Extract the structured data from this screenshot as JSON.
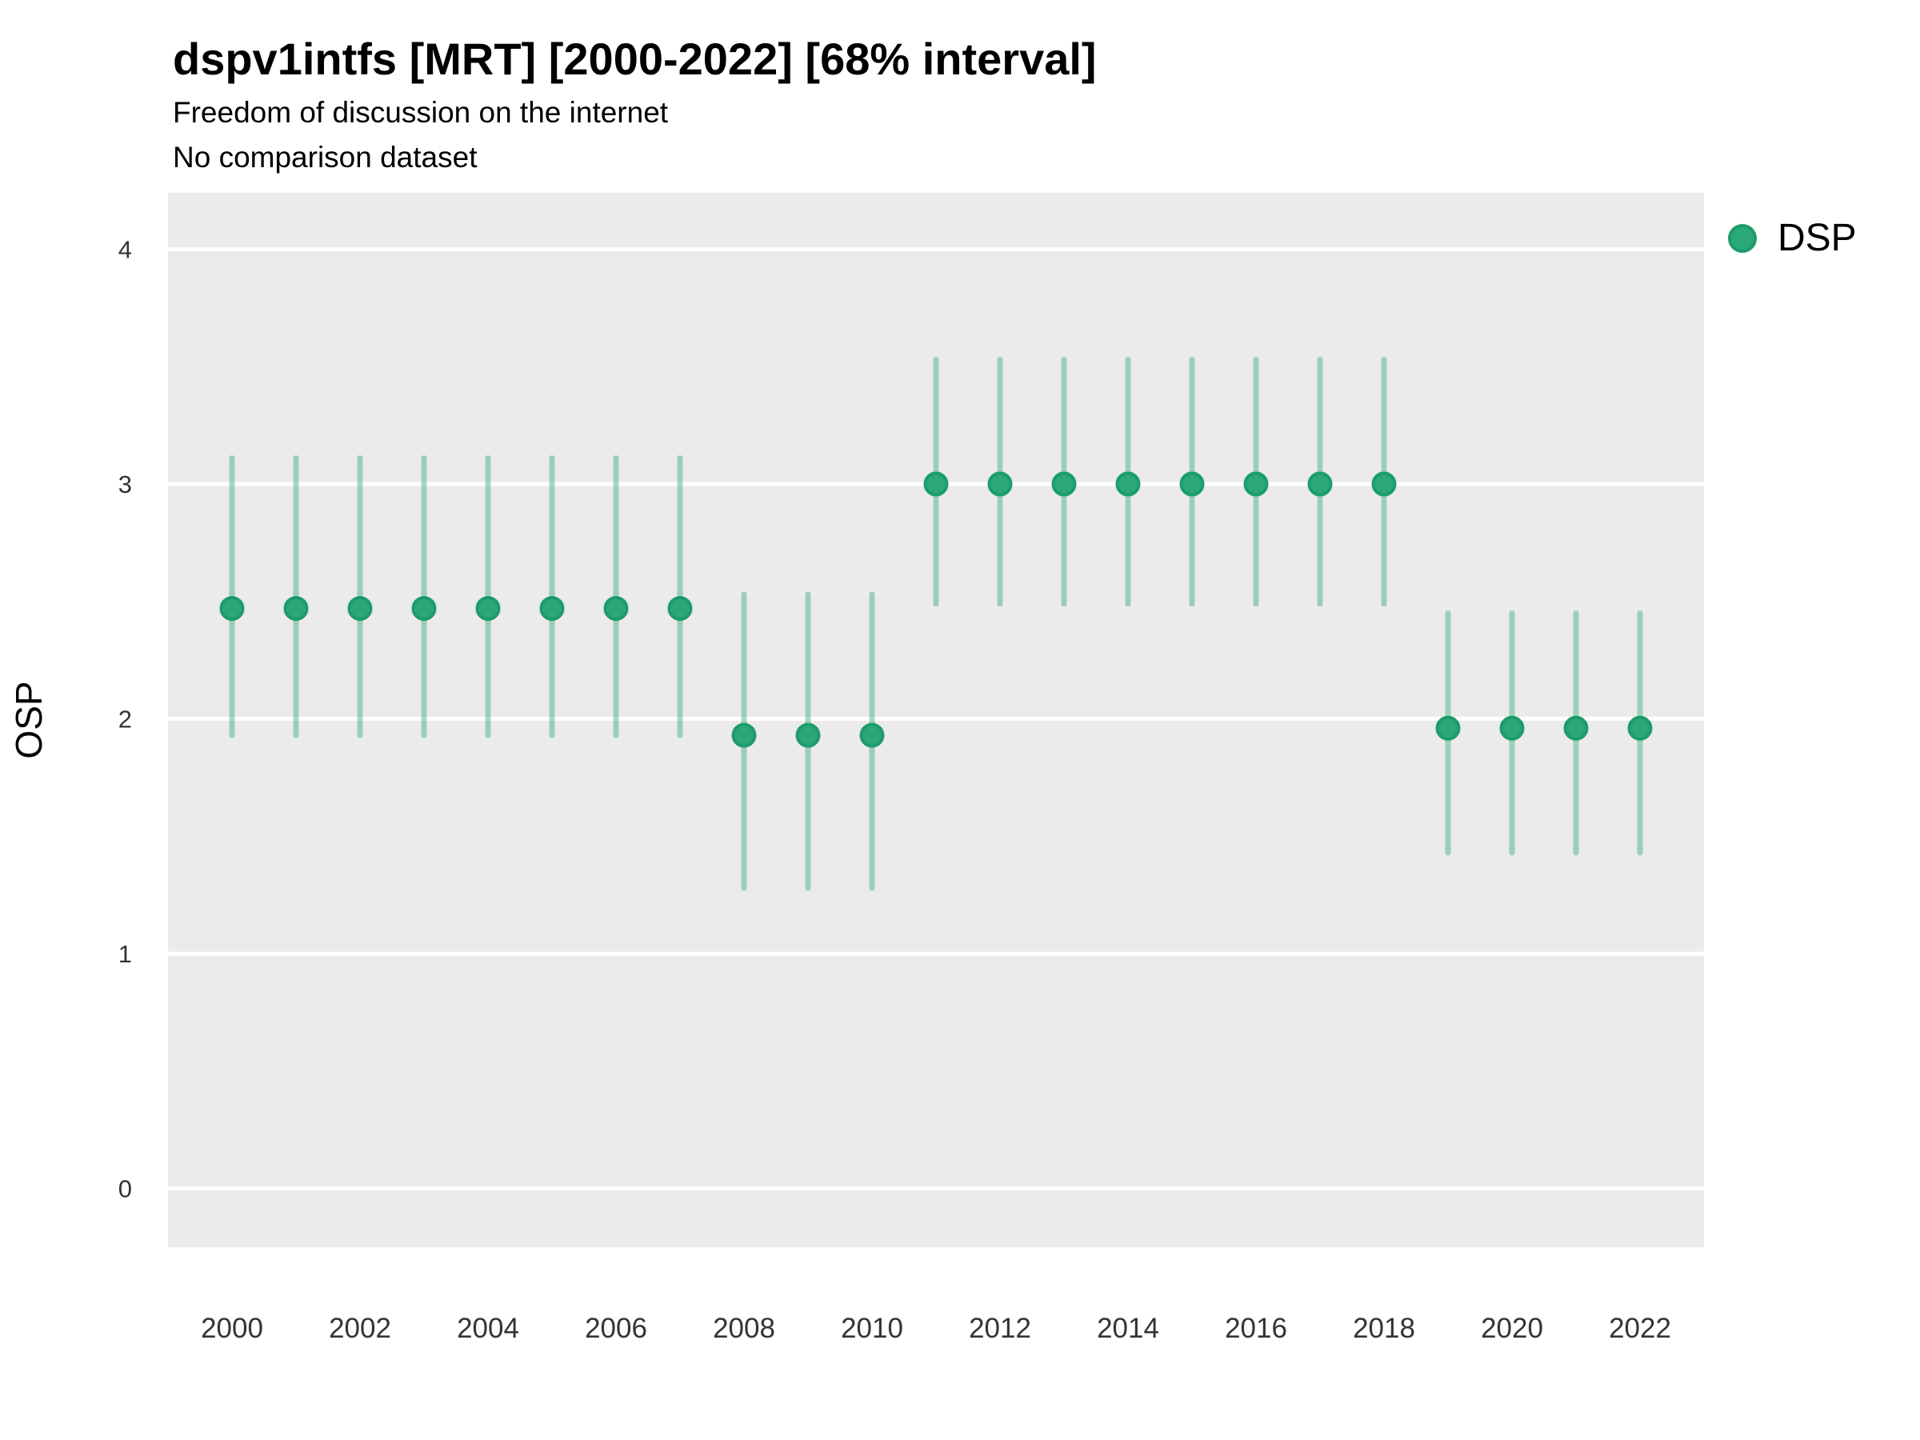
{
  "header": {
    "title": "dspv1intfs [MRT] [2000-2022] [68% interval]",
    "subtitle": "Freedom of discussion on the internet",
    "subtitle2": "No comparison dataset"
  },
  "legend": {
    "items": [
      {
        "label": "DSP",
        "marker": "filled-circle",
        "color": "#2BA878"
      }
    ],
    "position": "right-top"
  },
  "axes": {
    "y_label": "OSP",
    "x_tick_labels": [
      "2000",
      "2002",
      "2004",
      "2006",
      "2008",
      "2010",
      "2012",
      "2014",
      "2016",
      "2018",
      "2020",
      "2022"
    ],
    "y_tick_labels": [
      "0",
      "1",
      "2",
      "3",
      "4"
    ]
  },
  "colors": {
    "point_fill": "#2BA878",
    "point_stroke": "#1E9B6B",
    "interval_bar": "rgba(43,168,120,0.42)",
    "panel_background": "#EBEBEB",
    "gridline": "#FFFFFF",
    "tick_text": "#333333",
    "title_text": "#000000"
  },
  "chart_data": {
    "type": "scatter",
    "title": "dspv1intfs [MRT] [2000-2022] [68% interval]",
    "subtitle": "Freedom of discussion on the internet",
    "note": "No comparison dataset",
    "interval": "68%",
    "xlabel": "",
    "ylabel": "OSP",
    "xlim": [
      1999,
      2023
    ],
    "ylim": [
      -0.25,
      4.24
    ],
    "x_ticks": [
      2000,
      2002,
      2004,
      2006,
      2008,
      2010,
      2012,
      2014,
      2016,
      2018,
      2020,
      2022
    ],
    "y_ticks": [
      0,
      1,
      2,
      3,
      4
    ],
    "grid": "major-horizontal-white-on-gray",
    "legend_position": "right-top",
    "series": [
      {
        "name": "DSP",
        "x": [
          2000,
          2001,
          2002,
          2003,
          2004,
          2005,
          2006,
          2007,
          2008,
          2009,
          2010,
          2011,
          2012,
          2013,
          2014,
          2015,
          2016,
          2017,
          2018,
          2019,
          2020,
          2021,
          2022
        ],
        "y": [
          2.47,
          2.47,
          2.47,
          2.47,
          2.47,
          2.47,
          2.47,
          2.47,
          1.93,
          1.93,
          1.93,
          3.0,
          3.0,
          3.0,
          3.0,
          3.0,
          3.0,
          3.0,
          3.0,
          1.96,
          1.96,
          1.96,
          1.96
        ],
        "y_lo": [
          1.93,
          1.93,
          1.93,
          1.93,
          1.93,
          1.93,
          1.93,
          1.93,
          1.28,
          1.28,
          1.28,
          2.49,
          2.49,
          2.49,
          2.49,
          2.49,
          2.49,
          2.49,
          2.49,
          1.43,
          1.43,
          1.43,
          1.43
        ],
        "y_hi": [
          3.11,
          3.11,
          3.11,
          3.11,
          3.11,
          3.11,
          3.11,
          3.11,
          2.53,
          2.53,
          2.53,
          3.53,
          3.53,
          3.53,
          3.53,
          3.53,
          3.53,
          3.53,
          3.53,
          2.45,
          2.45,
          2.45,
          2.45
        ]
      }
    ]
  }
}
